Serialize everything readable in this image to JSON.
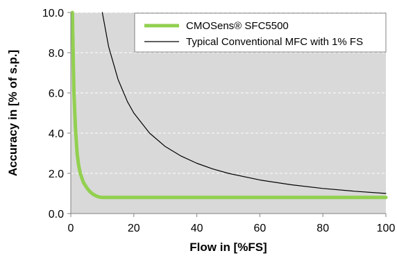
{
  "chart_data": {
    "type": "line",
    "xlabel": "Flow in [%FS]",
    "ylabel": "Accuracy in [% of s.p.]",
    "xlim": [
      0,
      100
    ],
    "ylim": [
      0,
      10
    ],
    "x_ticks": [
      0,
      20,
      40,
      60,
      80,
      100
    ],
    "y_ticks": [
      0,
      2,
      4,
      6,
      8,
      10
    ],
    "x_tick_labels": [
      "0",
      "20",
      "40",
      "60",
      "80",
      "100"
    ],
    "y_tick_labels": [
      "0.0",
      "2.0",
      "4.0",
      "6.0",
      "8.0",
      "10.0"
    ],
    "grid": "horizontal dashed",
    "legend_position": "top-right",
    "plot_background": "#d9d9d9",
    "series": [
      {
        "name": "CMOSens® SFC5500",
        "color": "#92d050",
        "style": "thick",
        "x": [
          0.5,
          0.8,
          1,
          1.5,
          2,
          2.5,
          3,
          4,
          5,
          6,
          7,
          8,
          9,
          10,
          15,
          20,
          40,
          60,
          80,
          100
        ],
        "y": [
          10,
          7.5,
          6.0,
          4.2,
          3.0,
          2.4,
          2.0,
          1.55,
          1.3,
          1.1,
          0.97,
          0.88,
          0.82,
          0.8,
          0.8,
          0.8,
          0.8,
          0.8,
          0.8,
          0.8
        ]
      },
      {
        "name": "Typical Conventional MFC with 1% FS",
        "color": "#000000",
        "style": "thin",
        "x": [
          10,
          12,
          15,
          18,
          20,
          25,
          30,
          35,
          40,
          45,
          50,
          60,
          70,
          80,
          90,
          100
        ],
        "y": [
          10,
          8.3,
          6.67,
          5.56,
          5.0,
          4.0,
          3.33,
          2.86,
          2.5,
          2.22,
          2.0,
          1.67,
          1.43,
          1.25,
          1.11,
          1.0
        ]
      }
    ]
  }
}
